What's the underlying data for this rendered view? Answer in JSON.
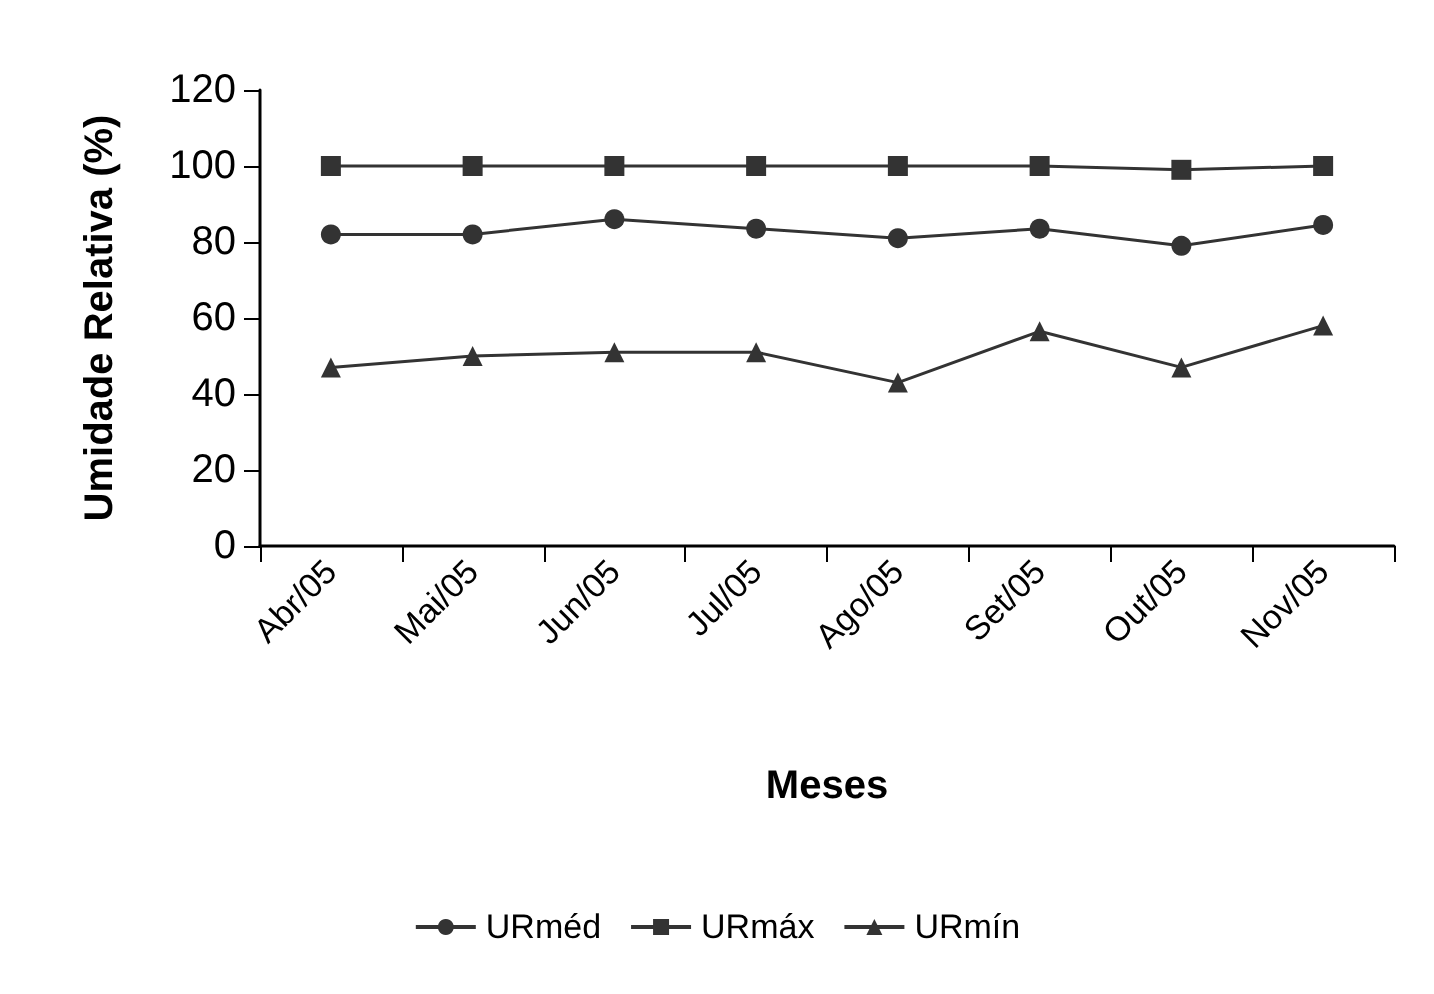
{
  "chart_data": {
    "type": "line",
    "xlabel": "Meses",
    "ylabel": "Umidade Relativa (%)",
    "categories": [
      "Abr/05",
      "Mai/05",
      "Jun/05",
      "Jul/05",
      "Ago/05",
      "Set/05",
      "Out/05",
      "Nov/05"
    ],
    "series": [
      {
        "name": "URméd",
        "color": "#333333",
        "marker": "circle",
        "values": [
          82,
          82,
          86,
          83.5,
          81,
          83.5,
          79,
          84.5
        ]
      },
      {
        "name": "URmáx",
        "color": "#333333",
        "marker": "square",
        "values": [
          100,
          100,
          100,
          100,
          100,
          100,
          99,
          100
        ]
      },
      {
        "name": "URmín",
        "color": "#333333",
        "marker": "triangle",
        "values": [
          47,
          50,
          51,
          51,
          43,
          56.5,
          47,
          58
        ]
      }
    ],
    "ylim": [
      0,
      120
    ],
    "yticks": [
      0,
      20,
      40,
      60,
      80,
      100,
      120
    ],
    "grid": false,
    "legend": "bottom"
  }
}
